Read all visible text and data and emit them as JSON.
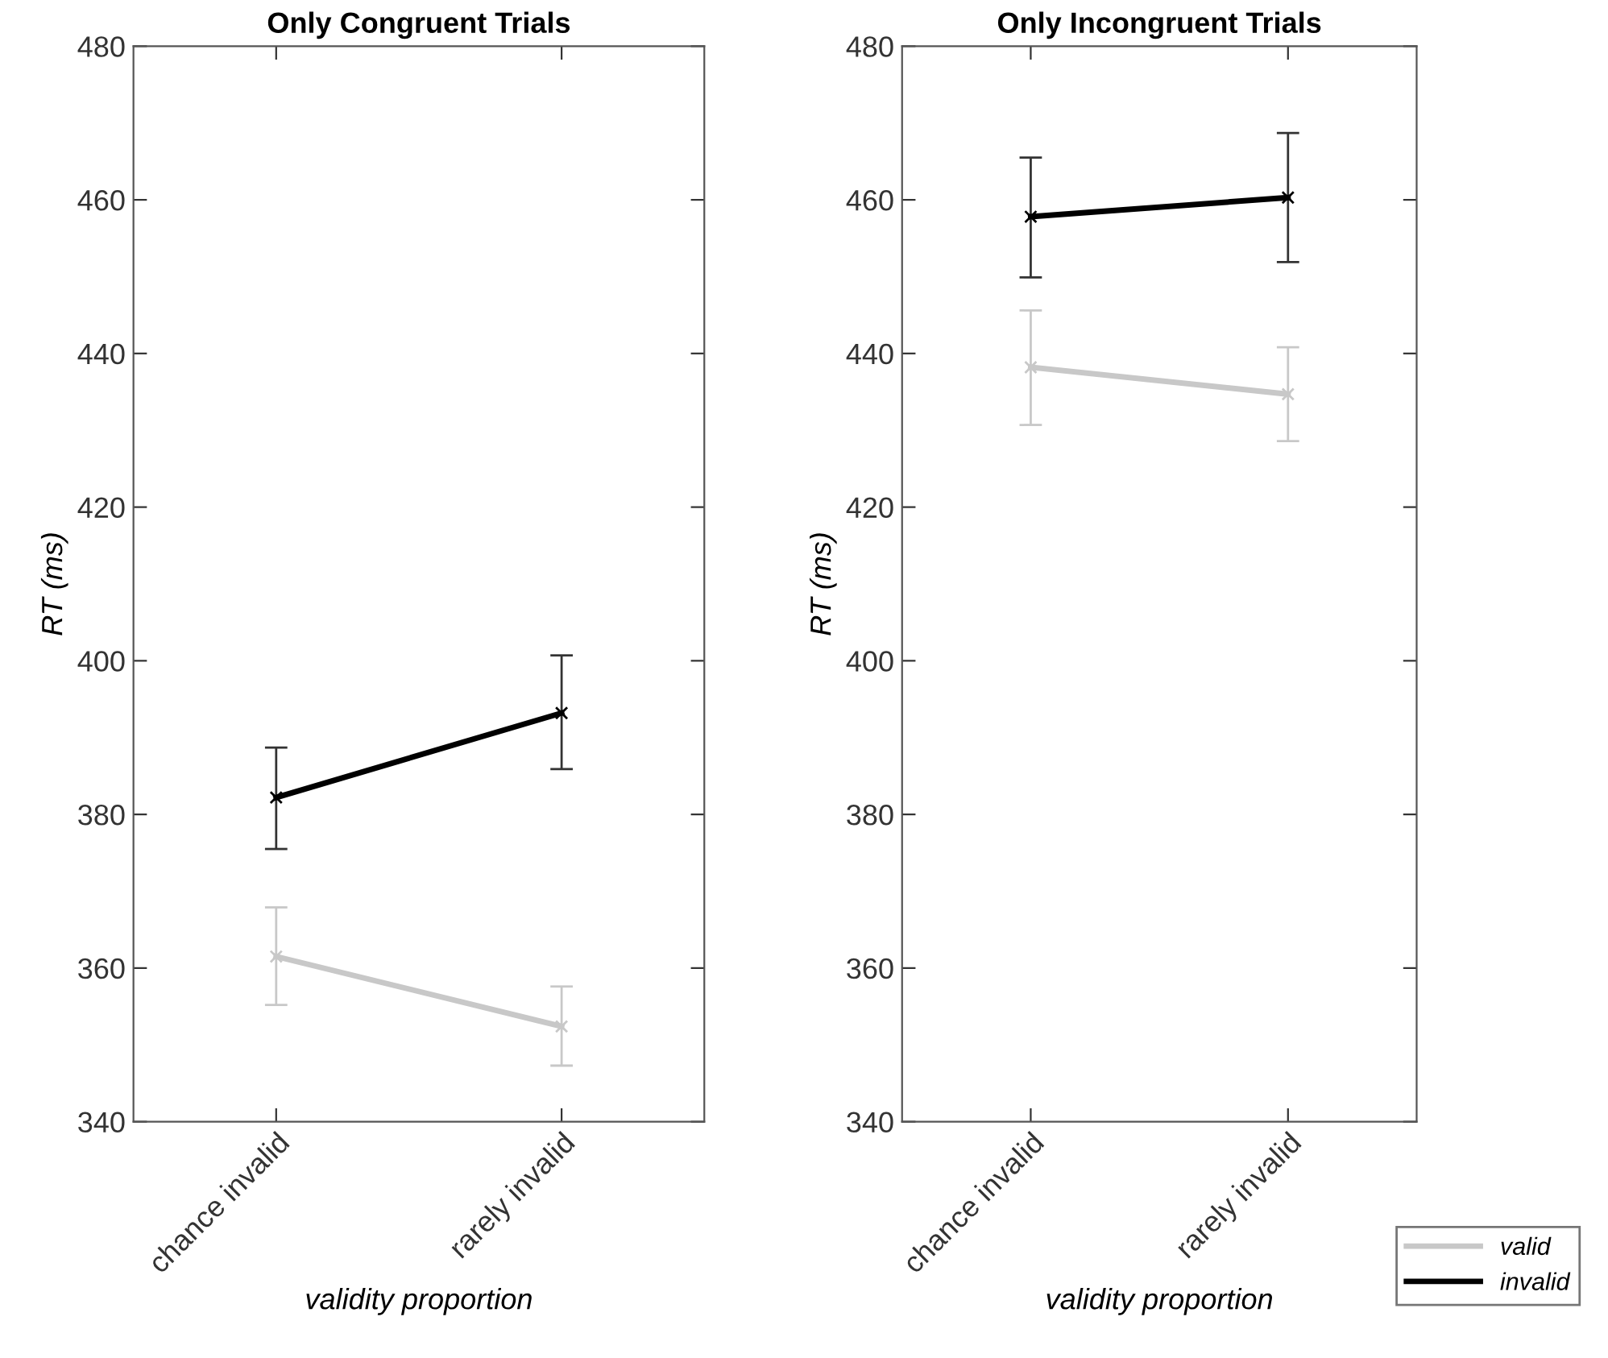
{
  "chart_data": [
    {
      "type": "line",
      "title": "Only Congruent Trials",
      "xlabel": "validity proportion",
      "ylabel": "RT (ms)",
      "categories": [
        "chance invalid",
        "rarely invalid"
      ],
      "ylim": [
        340,
        480
      ],
      "yticks": [
        340,
        360,
        380,
        400,
        420,
        440,
        460,
        480
      ],
      "marker": "cross",
      "line_style": "solid",
      "grid": false,
      "legend": false,
      "series": [
        {
          "color": "#c8c8c8",
          "values": [
            361.5,
            352.4
          ],
          "errors": [
            [
              355.2,
              367.9
            ],
            [
              347.3,
              357.6
            ]
          ]
        },
        {
          "color": "#000000",
          "values": [
            382.2,
            393.2
          ],
          "errors": [
            [
              375.5,
              388.7
            ],
            [
              385.9,
              400.7
            ]
          ]
        }
      ]
    },
    {
      "type": "line",
      "title": "Only Incongruent Trials",
      "xlabel": "validity proportion",
      "ylabel": "RT (ms)",
      "categories": [
        "chance invalid",
        "rarely invalid"
      ],
      "ylim": [
        340,
        480
      ],
      "yticks": [
        340,
        360,
        380,
        400,
        420,
        440,
        460,
        480
      ],
      "marker": "cross",
      "line_style": "solid",
      "grid": false,
      "legend": "bottom right",
      "series": [
        {
          "name": "valid",
          "color": "#c8c8c8",
          "values": [
            438.2,
            434.7
          ],
          "errors": [
            [
              430.7,
              445.6
            ],
            [
              428.6,
              440.8
            ]
          ]
        },
        {
          "name": "invalid",
          "color": "#000000",
          "values": [
            457.8,
            460.3
          ],
          "errors": [
            [
              449.9,
              465.5
            ],
            [
              451.9,
              468.7
            ]
          ]
        }
      ]
    }
  ]
}
